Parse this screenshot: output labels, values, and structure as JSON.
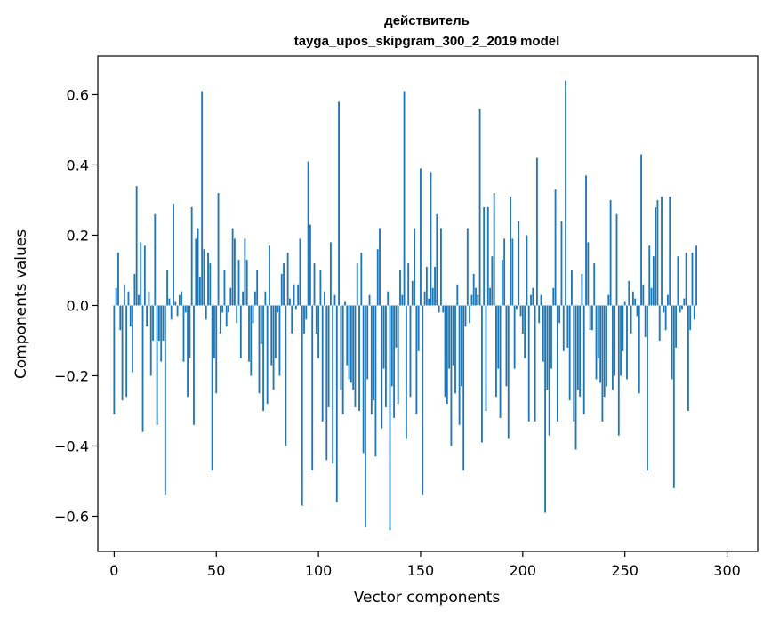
{
  "chart_data": {
    "type": "bar",
    "title": "действитель",
    "subtitle": "tayga_upos_skipgram_300_2_2019 model",
    "xlabel": "Vector components",
    "ylabel": "Components values",
    "xlim": [
      -8,
      315
    ],
    "ylim": [
      -0.7,
      0.71
    ],
    "xticks": [
      0,
      50,
      100,
      150,
      200,
      250,
      300
    ],
    "xtick_labels": [
      "0",
      "50",
      "100",
      "150",
      "200",
      "250",
      "300"
    ],
    "yticks": [
      -0.6,
      -0.4,
      -0.2,
      0.0,
      0.2,
      0.4,
      0.6
    ],
    "ytick_labels": [
      "−0.6",
      "−0.4",
      "−0.2",
      "0.0",
      "0.2",
      "0.4",
      "0.6"
    ],
    "grid": false,
    "bar_color": "#1f77b4",
    "x_start": 0,
    "values": [
      -0.31,
      0.05,
      0.15,
      -0.07,
      -0.27,
      0.06,
      -0.26,
      0.04,
      -0.06,
      -0.19,
      0.09,
      0.34,
      0.03,
      0.18,
      -0.36,
      0.17,
      -0.06,
      0.04,
      -0.2,
      -0.1,
      0.26,
      -0.34,
      -0.1,
      -0.16,
      -0.1,
      -0.54,
      0.1,
      0.02,
      -0.04,
      0.29,
      0.01,
      -0.03,
      0.03,
      0.04,
      -0.16,
      -0.02,
      -0.26,
      -0.15,
      0.28,
      -0.34,
      0.19,
      0.22,
      0.08,
      0.61,
      0.16,
      -0.04,
      0.15,
      0.12,
      -0.47,
      -0.15,
      -0.25,
      0.32,
      -0.08,
      -0.02,
      0.1,
      -0.06,
      -0.02,
      0.05,
      0.22,
      0.19,
      -0.05,
      0.13,
      -0.15,
      0.04,
      0.19,
      0.13,
      -0.16,
      -0.2,
      -0.05,
      0.04,
      0.1,
      -0.25,
      -0.11,
      -0.3,
      0.04,
      -0.28,
      0.17,
      -0.17,
      -0.24,
      -0.15,
      -0.02,
      -0.2,
      0.09,
      0.12,
      -0.4,
      0.15,
      0.02,
      -0.08,
      0.06,
      -0.01,
      0.06,
      0.19,
      -0.57,
      -0.08,
      -0.04,
      0.41,
      0.23,
      -0.47,
      0.12,
      -0.08,
      -0.15,
      0.1,
      -0.33,
      0.04,
      -0.44,
      -0.29,
      0.18,
      -0.45,
      0.03,
      -0.56,
      0.58,
      -0.24,
      -0.31,
      0.01,
      -0.17,
      -0.21,
      -0.22,
      -0.24,
      -0.29,
      0.12,
      -0.3,
      0.15,
      -0.42,
      -0.63,
      -0.21,
      0.03,
      -0.31,
      -0.27,
      -0.43,
      0.16,
      0.22,
      -0.35,
      -0.18,
      -0.29,
      0.04,
      -0.64,
      -0.23,
      -0.32,
      -0.12,
      -0.28,
      0.1,
      0.03,
      0.61,
      -0.38,
      0.12,
      -0.26,
      0.07,
      0.22,
      -0.31,
      -0.13,
      0.39,
      -0.54,
      0.04,
      0.11,
      0.02,
      0.38,
      0.05,
      0.11,
      0.26,
      -0.02,
      0.22,
      -0.02,
      -0.26,
      -0.28,
      -0.18,
      -0.4,
      -0.17,
      -0.25,
      0.06,
      -0.34,
      -0.23,
      -0.47,
      -0.06,
      0.22,
      -0.05,
      0.03,
      0.09,
      0.05,
      0.03,
      0.56,
      -0.39,
      0.28,
      -0.3,
      0.28,
      0.05,
      0.14,
      0.32,
      -0.26,
      -0.18,
      -0.32,
      0.13,
      0.19,
      -0.23,
      -0.38,
      0.31,
      0.19,
      -0.18,
      -0.01,
      0.24,
      -0.03,
      -0.08,
      -0.15,
      0.2,
      -0.33,
      0.03,
      0.05,
      -0.33,
      0.42,
      -0.05,
      0.03,
      -0.16,
      -0.59,
      -0.24,
      -0.37,
      -0.18,
      0.05,
      0.33,
      -0.33,
      -0.05,
      0.24,
      -0.13,
      0.64,
      -0.12,
      -0.27,
      0.1,
      -0.33,
      -0.41,
      -0.24,
      -0.26,
      0.09,
      -0.31,
      0.37,
      0.18,
      -0.07,
      -0.07,
      0.12,
      -0.21,
      -0.15,
      -0.22,
      -0.33,
      -0.26,
      -0.23,
      0.03,
      0.3,
      -0.24,
      -0.2,
      0.26,
      -0.37,
      -0.2,
      -0.13,
      0.01,
      -0.21,
      0.07,
      -0.08,
      0.04,
      0.02,
      -0.03,
      -0.25,
      0.43,
      0.06,
      -0.09,
      -0.47,
      0.17,
      0.05,
      0.14,
      0.28,
      0.3,
      -0.1,
      0.31,
      -0.02,
      -0.07,
      0.03,
      0.31,
      -0.21,
      -0.52,
      -0.12,
      0.14,
      -0.02,
      -0.01,
      0.02,
      0.15,
      -0.3,
      -0.07,
      0.15,
      -0.04,
      0.17
    ]
  }
}
